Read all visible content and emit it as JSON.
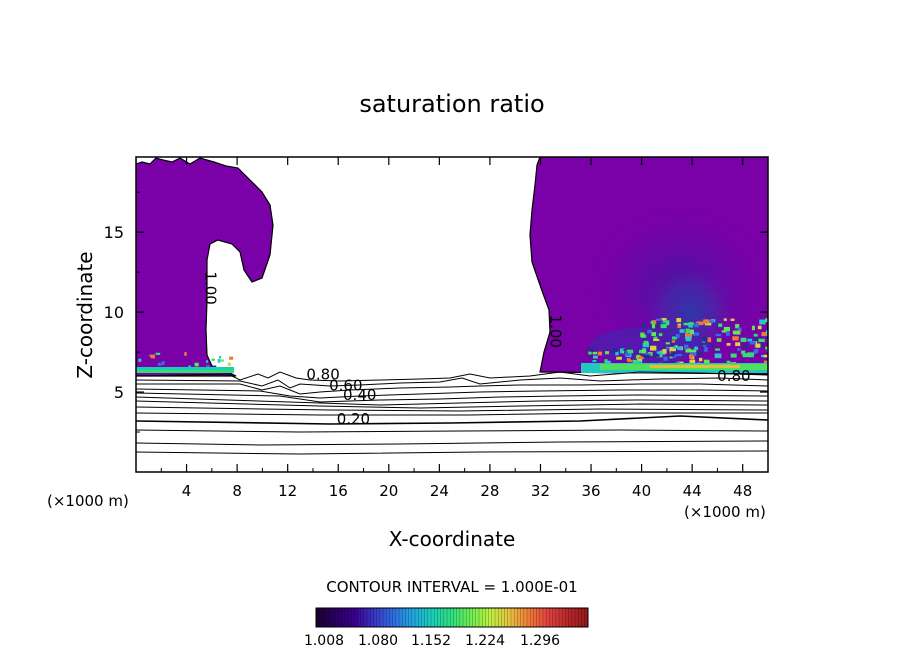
{
  "chart_data": {
    "type": "heatmap",
    "title": "saturation ratio",
    "xlabel": "X-coordinate",
    "ylabel": "Z-coordinate",
    "x_unit_left": "(×1000 m)",
    "x_unit_right": "(×1000 m)",
    "xlim": [
      0,
      50
    ],
    "ylim": [
      0,
      19.7
    ],
    "x_ticks": [
      "4",
      "8",
      "12",
      "16",
      "20",
      "24",
      "28",
      "32",
      "36",
      "40",
      "44",
      "48"
    ],
    "y_ticks": [
      "5",
      "10",
      "15"
    ],
    "grid": false,
    "contour_interval_text": "CONTOUR INTERVAL = 1.000E-01",
    "contour_interval": 0.1,
    "contour_labels": [
      {
        "text": "1.00",
        "x": 5.5,
        "z": 11.5,
        "rotate": -90
      },
      {
        "text": "1.00",
        "x": 32.8,
        "z": 8.8,
        "rotate": -90
      },
      {
        "text": "0.80",
        "x": 14.8,
        "z": 5.8
      },
      {
        "text": "0.80",
        "x": 47.3,
        "z": 5.7
      },
      {
        "text": "0.60",
        "x": 16.6,
        "z": 5.1
      },
      {
        "text": "0.40",
        "x": 17.7,
        "z": 4.5
      },
      {
        "text": "0.20",
        "x": 17.2,
        "z": 3.0
      }
    ],
    "colorbar": {
      "ticks": [
        "1.008",
        "1.080",
        "1.152",
        "1.224",
        "1.296"
      ],
      "colors": [
        "#1a0030",
        "#2a0060",
        "#3a0090",
        "#3838c8",
        "#2f6fe0",
        "#20a8e0",
        "#18d0b8",
        "#30e080",
        "#70ef50",
        "#c0f040",
        "#e8c040",
        "#f07838",
        "#e04040",
        "#b82828",
        "#901818"
      ]
    },
    "supersaturated_fill": "#7a00a8"
  }
}
